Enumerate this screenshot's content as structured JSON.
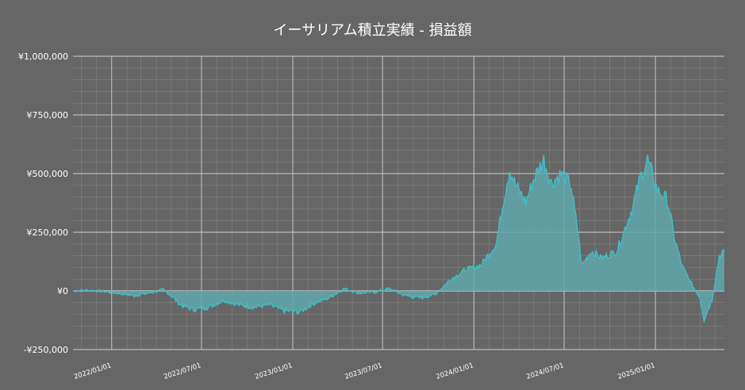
{
  "chart_data": {
    "type": "area",
    "title": "イーサリアム積立実績 - 損益額",
    "xlabel": "",
    "ylabel": "",
    "x_range": [
      "2021-10-15",
      "2025-05-20"
    ],
    "ylim": [
      -250000,
      1000000
    ],
    "y_ticks": [
      {
        "value": 1000000,
        "label": "¥1,000,000"
      },
      {
        "value": 750000,
        "label": "¥750,000"
      },
      {
        "value": 500000,
        "label": "¥500,000"
      },
      {
        "value": 250000,
        "label": "¥250,000"
      },
      {
        "value": 0,
        "label": "¥0"
      },
      {
        "value": -250000,
        "label": "-¥250,000"
      }
    ],
    "x_ticks": [
      {
        "date": "2022-01-01",
        "label": "2022/01/01"
      },
      {
        "date": "2022-07-01",
        "label": "2022/07/01"
      },
      {
        "date": "2023-01-01",
        "label": "2023/01/01"
      },
      {
        "date": "2023-07-01",
        "label": "2023/07/01"
      },
      {
        "date": "2024-01-01",
        "label": "2024/01/01"
      },
      {
        "date": "2024-07-01",
        "label": "2024/07/01"
      },
      {
        "date": "2025-01-01",
        "label": "2025/01/01"
      }
    ],
    "grid": true,
    "colors": {
      "background": "#666666",
      "line": "#3fc1c9",
      "fill": "#5fa8ab",
      "grid": "#9a9a9a",
      "text": "#ffffff"
    },
    "series": [
      {
        "x": [
          "2021-10-15",
          "2021-11-15",
          "2021-12-15",
          "2022-01-15",
          "2022-02-15",
          "2022-03-15",
          "2022-04-15",
          "2022-05-01",
          "2022-05-20",
          "2022-06-15",
          "2022-07-15",
          "2022-08-15",
          "2022-09-15",
          "2022-10-15",
          "2022-11-15",
          "2022-12-15",
          "2023-01-15",
          "2023-02-15",
          "2023-03-15",
          "2023-04-15",
          "2023-05-15",
          "2023-06-15",
          "2023-07-15",
          "2023-08-15",
          "2023-09-15",
          "2023-10-15",
          "2023-11-15",
          "2023-12-15",
          "2024-01-15",
          "2024-02-15",
          "2024-03-01",
          "2024-03-13",
          "2024-03-25",
          "2024-04-15",
          "2024-05-01",
          "2024-05-21",
          "2024-06-05",
          "2024-06-25",
          "2024-07-15",
          "2024-08-01",
          "2024-08-05",
          "2024-08-25",
          "2024-09-15",
          "2024-10-15",
          "2024-11-15",
          "2024-12-01",
          "2024-12-16",
          "2025-01-05",
          "2025-01-25",
          "2025-02-10",
          "2025-02-25",
          "2025-03-15",
          "2025-04-01",
          "2025-04-09",
          "2025-04-25",
          "2025-05-10",
          "2025-05-20"
        ],
        "values": [
          0,
          3000,
          -2000,
          -10000,
          -20000,
          -10000,
          5000,
          -20000,
          -60000,
          -80000,
          -70000,
          -40000,
          -60000,
          -70000,
          -60000,
          -85000,
          -90000,
          -50000,
          -30000,
          10000,
          -10000,
          -5000,
          10000,
          -20000,
          -30000,
          -15000,
          50000,
          90000,
          110000,
          200000,
          390000,
          520000,
          450000,
          380000,
          480000,
          560000,
          460000,
          500000,
          450000,
          200000,
          110000,
          170000,
          140000,
          170000,
          350000,
          480000,
          560000,
          430000,
          390000,
          210000,
          100000,
          30000,
          -30000,
          -120000,
          -40000,
          150000,
          170000
        ]
      }
    ]
  }
}
